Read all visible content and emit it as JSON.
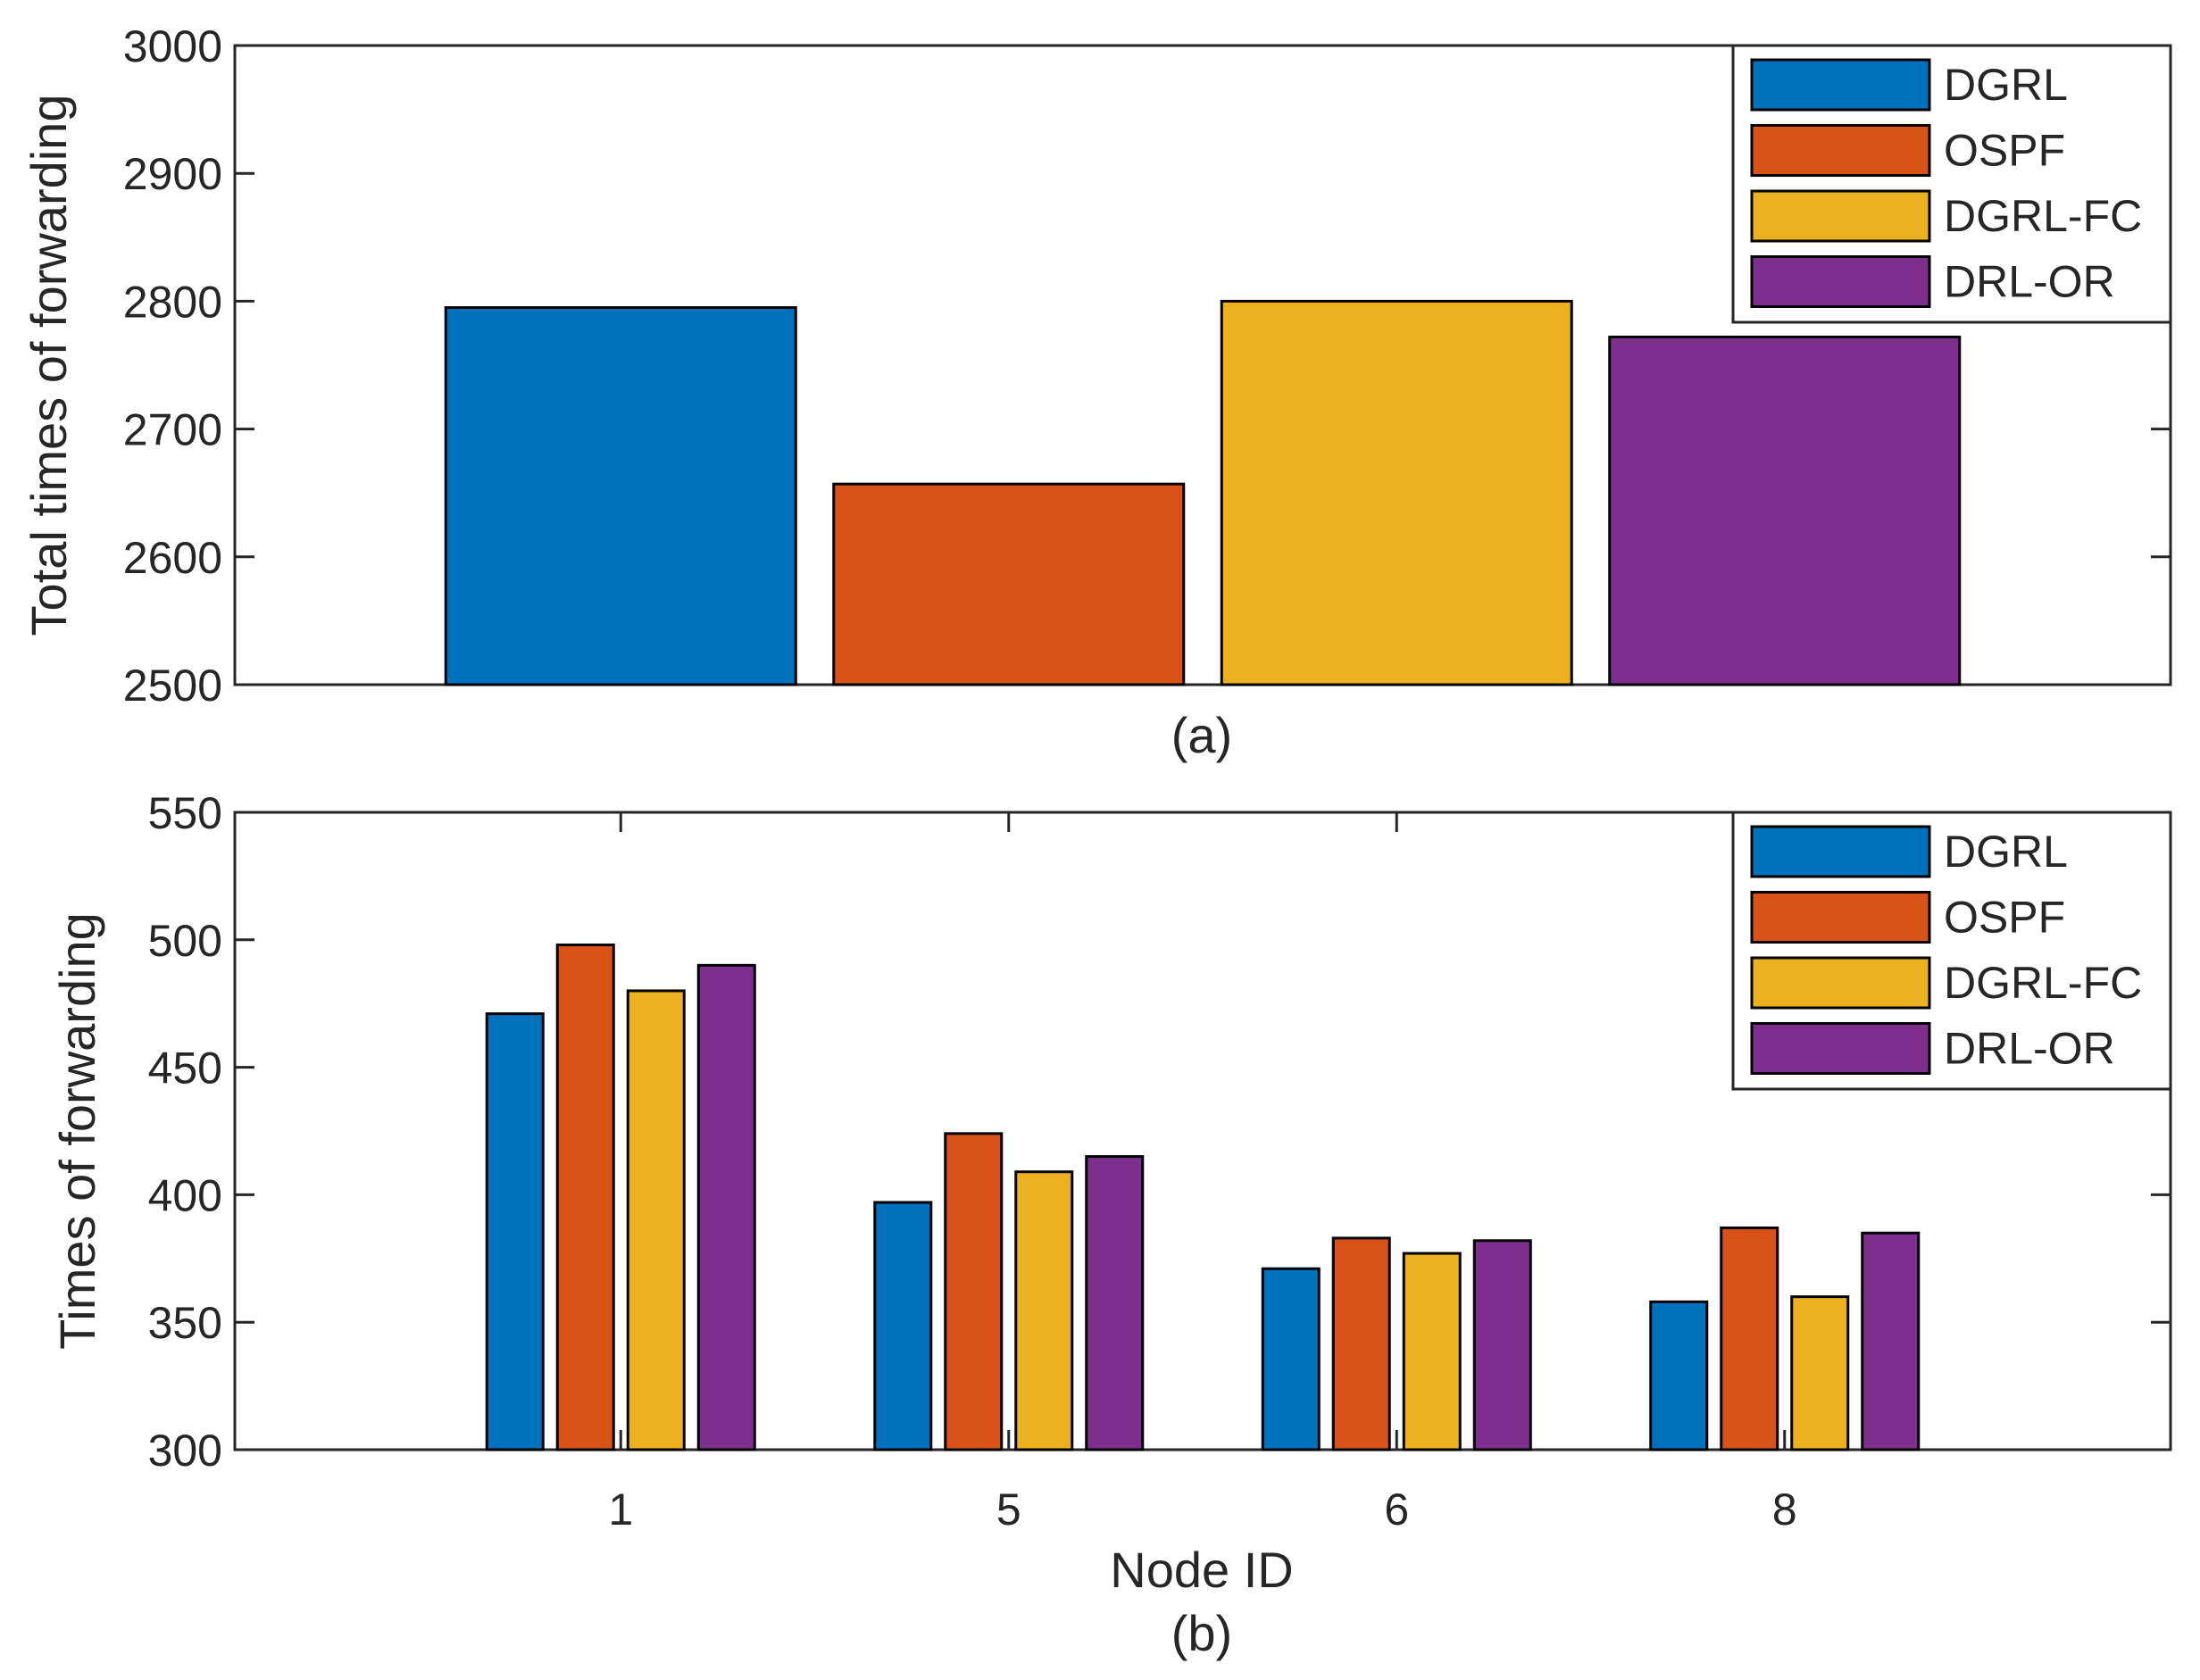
{
  "colors": {
    "DGRL": "#0072BD",
    "OSPF": "#D95319",
    "DGRL-FC": "#EDB120",
    "DRL-OR": "#7E2F8E",
    "axis": "#262626"
  },
  "chart_data": [
    {
      "type": "bar",
      "panel": "(a)",
      "title": "",
      "xlabel": "",
      "ylabel": "Total times of forwarding",
      "ylim": [
        2500,
        3000
      ],
      "yticks": [
        2500,
        2600,
        2700,
        2800,
        2900,
        3000
      ],
      "grid": false,
      "legend_position": "top-right",
      "categories": [
        "DGRL",
        "OSPF",
        "DGRL-FC",
        "DRL-OR"
      ],
      "values": [
        2795,
        2657,
        2800,
        2772
      ],
      "legend": [
        "DGRL",
        "OSPF",
        "DGRL-FC",
        "DRL-OR"
      ]
    },
    {
      "type": "bar",
      "panel": "(b)",
      "title": "",
      "xlabel": "Node ID",
      "ylabel": "Times of forwarding",
      "ylim": [
        300,
        550
      ],
      "yticks": [
        300,
        350,
        400,
        450,
        500,
        550
      ],
      "grid": false,
      "legend_position": "top-right",
      "categories": [
        "1",
        "5",
        "6",
        "8"
      ],
      "series": [
        {
          "name": "DGRL",
          "values": [
            471,
            397,
            371,
            358
          ]
        },
        {
          "name": "OSPF",
          "values": [
            498,
            424,
            383,
            387
          ]
        },
        {
          "name": "DGRL-FC",
          "values": [
            480,
            409,
            377,
            360
          ]
        },
        {
          "name": "DRL-OR",
          "values": [
            490,
            415,
            382,
            385
          ]
        }
      ],
      "legend": [
        "DGRL",
        "OSPF",
        "DGRL-FC",
        "DRL-OR"
      ]
    }
  ]
}
